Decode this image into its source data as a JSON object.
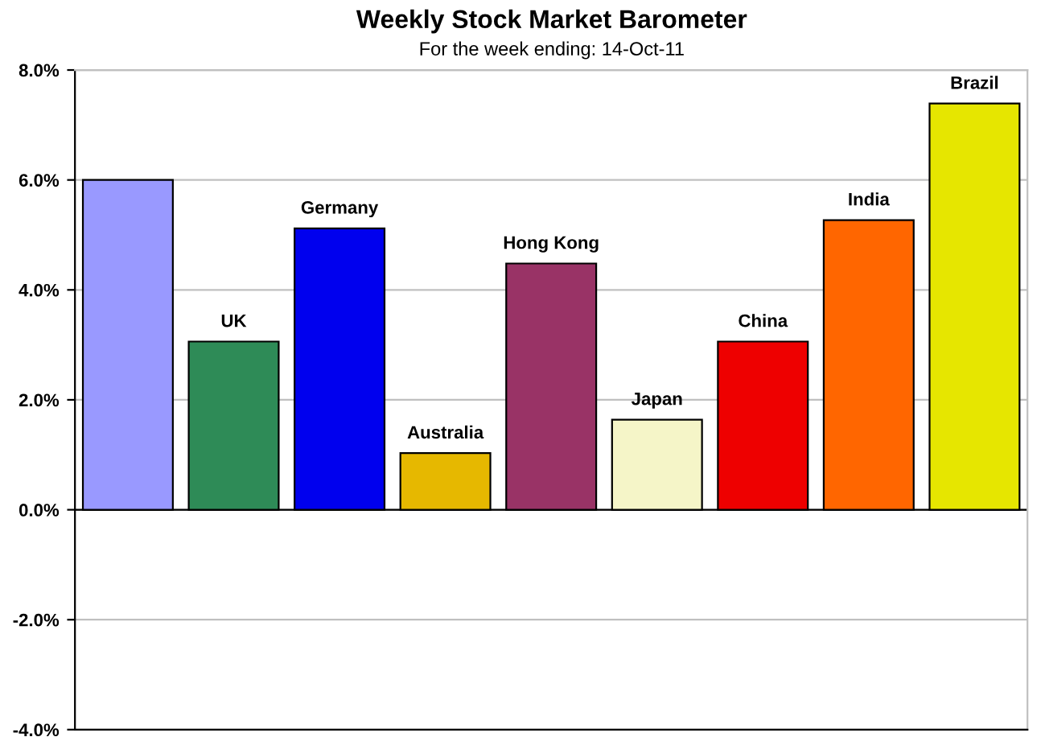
{
  "chart_data": {
    "type": "bar",
    "title": "Weekly Stock Market Barometer",
    "subtitle": "For the week ending: 14-Oct-11",
    "categories": [
      null,
      "UK",
      "Germany",
      "Australia",
      "Hong Kong",
      "Japan",
      "China",
      "India",
      "Brazil"
    ],
    "values": [
      6.0,
      3.06,
      5.12,
      1.03,
      4.48,
      1.64,
      3.06,
      5.27,
      7.39
    ],
    "colors": [
      "#9999ff",
      "#2e8b57",
      "#0000ee",
      "#e6b800",
      "#993366",
      "#f5f5c8",
      "#ee0000",
      "#ff6600",
      "#e6e600"
    ],
    "ylim": [
      -4,
      8
    ],
    "yticks": [
      {
        "value": -4,
        "label": "-4.0%"
      },
      {
        "value": -2,
        "label": "-2.0%"
      },
      {
        "value": 0,
        "label": "0.0%"
      },
      {
        "value": 2,
        "label": "2.0%"
      },
      {
        "value": 4,
        "label": "4.0%"
      },
      {
        "value": 6,
        "label": "6.0%"
      },
      {
        "value": 8,
        "label": "8.0%"
      }
    ],
    "grid": "y"
  }
}
